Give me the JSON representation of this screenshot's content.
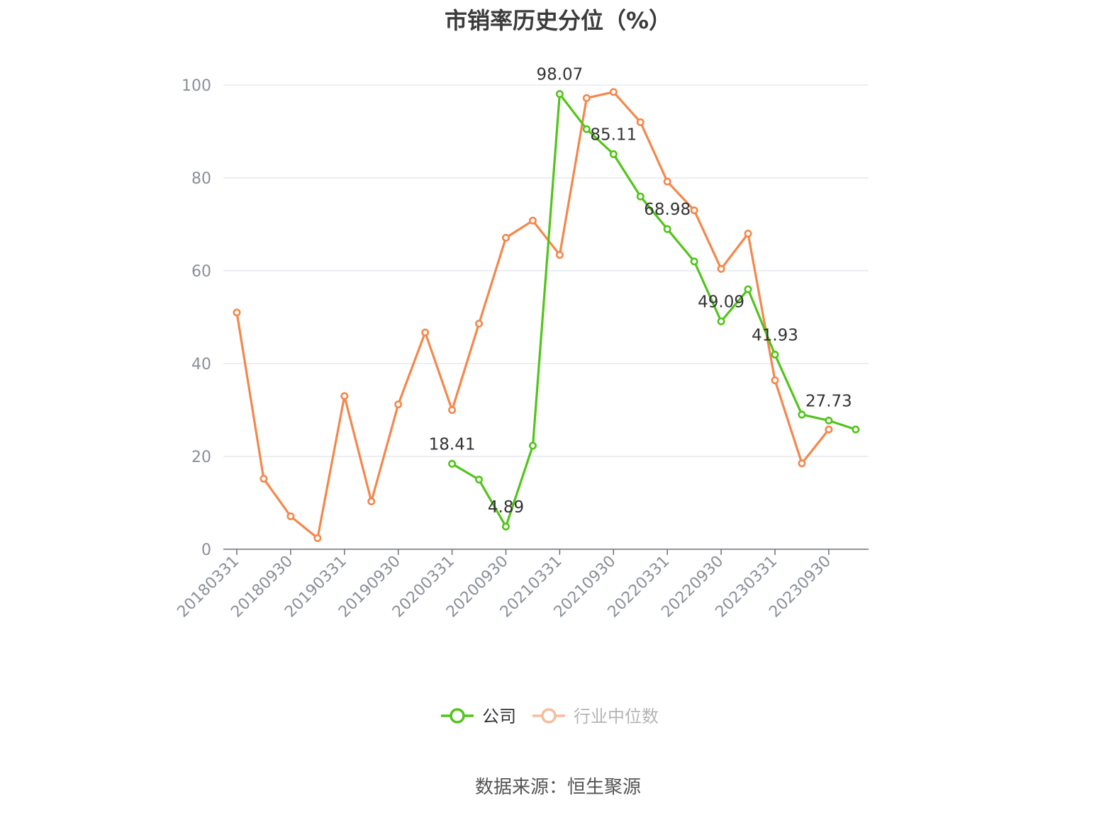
{
  "title": "市销率历史分位（%）",
  "source": "数据来源：恒生聚源",
  "chart_data": {
    "type": "line",
    "title": "市销率历史分位（%）",
    "x": [
      "20180331",
      "20180630",
      "20180930",
      "20181231",
      "20190331",
      "20190630",
      "20190930",
      "20191231",
      "20200331",
      "20200630",
      "20200930",
      "20201231",
      "20210331",
      "20210630",
      "20210930",
      "20211231",
      "20220331",
      "20220630",
      "20220930",
      "20221231",
      "20230331",
      "20230630",
      "20230930",
      "20231231"
    ],
    "x_tick_labels": [
      "20180331",
      "20180930",
      "20190331",
      "20190930",
      "20200331",
      "20200930",
      "20210331",
      "20210930",
      "20220331",
      "20220930",
      "20230331",
      "20230930"
    ],
    "ylim": [
      0,
      100
    ],
    "y_ticks": [
      0,
      20,
      40,
      60,
      80,
      100
    ],
    "grid": true,
    "legend_position": "bottom-center",
    "series": [
      {
        "name": "公司",
        "color": "#52c41a",
        "values": [
          null,
          null,
          null,
          null,
          null,
          null,
          null,
          null,
          18.41,
          15.0,
          4.89,
          22.3,
          98.07,
          90.5,
          85.11,
          76.0,
          68.98,
          62.0,
          49.09,
          56.0,
          41.93,
          29.0,
          27.73,
          25.8
        ],
        "labels": {
          "8": "18.41",
          "10": "4.89",
          "12": "98.07",
          "14": "85.11",
          "16": "68.98",
          "18": "49.09",
          "20": "41.93",
          "22": "27.73"
        }
      },
      {
        "name": "行业中位数",
        "color": "#f4874b",
        "values": [
          51.0,
          15.2,
          7.1,
          2.4,
          33.0,
          10.3,
          31.2,
          46.7,
          30.0,
          48.6,
          67.1,
          70.8,
          63.4,
          97.2,
          98.5,
          92.0,
          79.2,
          73.0,
          60.4,
          68.0,
          36.4,
          18.5,
          25.8,
          null
        ]
      }
    ]
  }
}
